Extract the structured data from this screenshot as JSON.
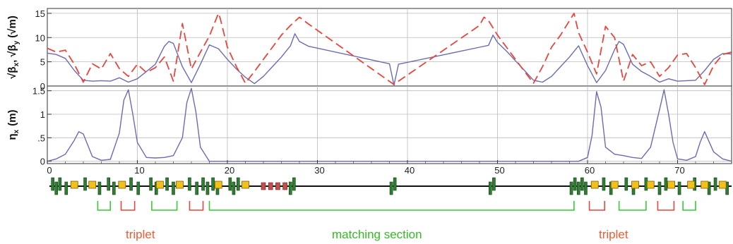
{
  "chart_data": [
    {
      "type": "line",
      "ylabel": "√β_x, √β_y (√m)",
      "ylabel_parts": {
        "beta": "β",
        "sub_x": "x",
        "sub_y": "y",
        "sep": ",",
        "unit": "(√m)",
        "root": "√"
      },
      "xlim": [
        0,
        76
      ],
      "ylim": [
        0,
        16
      ],
      "yticks": [
        {
          "value": 0,
          "label": "0"
        },
        {
          "value": 5,
          "label": "5"
        },
        {
          "value": 10,
          "label": "10"
        },
        {
          "value": 15,
          "label": "15"
        }
      ],
      "grid": true,
      "series": [
        {
          "color": "#6b6bb3",
          "style": "solid",
          "x": [
            0,
            1,
            2,
            3,
            4,
            5,
            6,
            7,
            8,
            9,
            10,
            11,
            12,
            13,
            13.5,
            14,
            15,
            16,
            17,
            18,
            19,
            20,
            21,
            22,
            23,
            24,
            25,
            26,
            27,
            27.5,
            28,
            29,
            38,
            38.5,
            39,
            48,
            49,
            49.5,
            50,
            51,
            52,
            53,
            54,
            55,
            56,
            57,
            58,
            59,
            60,
            61,
            62,
            63,
            63.5,
            64,
            65,
            66,
            67,
            68,
            69,
            70,
            71,
            72,
            73,
            74,
            75,
            76
          ],
          "y": [
            6.8,
            6.5,
            5.7,
            3.2,
            1.2,
            1.0,
            1.1,
            1.0,
            1.7,
            0.8,
            1.5,
            3.0,
            4.5,
            8.2,
            9.2,
            8.8,
            4.0,
            0.7,
            4.5,
            8.5,
            7.7,
            5.5,
            3.5,
            1.8,
            0.5,
            2.0,
            4.0,
            6.0,
            8.3,
            10.8,
            9.2,
            8.2,
            4.6,
            0.2,
            4.5,
            8.0,
            8.4,
            10.5,
            9.0,
            7.2,
            5.2,
            3.2,
            1.2,
            0.8,
            2.0,
            4.0,
            6.0,
            8.3,
            4.2,
            0.7,
            3.2,
            7.5,
            9.2,
            8.6,
            4.5,
            3.0,
            2.0,
            0.8,
            1.5,
            1.0,
            1.1,
            1.2,
            3.2,
            5.5,
            6.7,
            6.6
          ]
        },
        {
          "color": "#e8453c",
          "style": "dashed",
          "x": [
            0,
            1,
            2,
            3,
            4,
            5,
            6,
            7,
            8,
            9,
            10,
            11,
            12,
            13,
            14,
            15,
            16,
            17,
            18,
            19,
            19.2,
            20,
            21,
            22,
            23,
            24,
            25,
            26,
            27,
            28,
            29,
            38.5,
            39,
            48,
            48.5,
            49,
            50,
            51,
            52,
            53,
            54,
            55,
            56,
            57,
            58,
            58.5,
            59,
            60,
            61,
            62,
            63,
            64,
            65,
            66,
            67,
            68,
            69,
            70,
            71,
            72,
            73,
            74,
            75,
            76
          ],
          "y": [
            7.8,
            7.0,
            7.4,
            4.5,
            0.8,
            4.6,
            3.5,
            6.7,
            3.6,
            2.0,
            4.5,
            2.8,
            3.8,
            6.0,
            1.0,
            12.9,
            3.5,
            7.0,
            10.3,
            15.0,
            14.0,
            8.0,
            4.0,
            0.6,
            3.0,
            5.5,
            8.0,
            10.5,
            12.5,
            14.2,
            12.8,
            0.3,
            1.0,
            12.5,
            14.2,
            13.5,
            10.5,
            8.0,
            5.5,
            3.0,
            0.6,
            4.0,
            8.0,
            10.5,
            13.5,
            15.0,
            11.0,
            7.0,
            2.5,
            12.3,
            10.0,
            1.0,
            6.5,
            4.2,
            5.0,
            2.0,
            3.8,
            6.4,
            6.7,
            3.8,
            0.3,
            4.2,
            6.5,
            7.0
          ]
        }
      ]
    },
    {
      "type": "line",
      "ylabel": "η_x (m)",
      "ylabel_parts": {
        "eta": "η",
        "sub": "x",
        "unit": "(m)"
      },
      "xlim": [
        0,
        76
      ],
      "ylim": [
        -0.05,
        1.6
      ],
      "yticks": [
        {
          "value": 0,
          "label": "0"
        },
        {
          "value": 0.5,
          "label": ".5"
        },
        {
          "value": 1,
          "label": "1"
        },
        {
          "value": 1.5,
          "label": "1.5"
        }
      ],
      "xticks": [
        {
          "value": 0,
          "label": "0"
        },
        {
          "value": 10,
          "label": "10"
        },
        {
          "value": 20,
          "label": "20"
        },
        {
          "value": 30,
          "label": "30"
        },
        {
          "value": 40,
          "label": "40"
        },
        {
          "value": 50,
          "label": "50"
        },
        {
          "value": 60,
          "label": "60"
        },
        {
          "value": 70,
          "label": "70"
        }
      ],
      "grid": true,
      "series": [
        {
          "color": "#6b6bb3",
          "style": "solid",
          "x": [
            0,
            1,
            2,
            3,
            3.5,
            4,
            5,
            6,
            7,
            8,
            8.5,
            9,
            9.5,
            10,
            11,
            12,
            13,
            14,
            15,
            15.5,
            16,
            16.5,
            17,
            18,
            59,
            60,
            60.5,
            61,
            61.5,
            62,
            63,
            64,
            65,
            66,
            67,
            68,
            68.5,
            69,
            69.5,
            70,
            71,
            72,
            72.5,
            73,
            74,
            75,
            76
          ],
          "y": [
            0,
            0.05,
            0.15,
            0.45,
            0.63,
            0.58,
            0.1,
            0.02,
            0.04,
            0.6,
            1.3,
            1.52,
            1.0,
            0.4,
            0.08,
            0.07,
            0.08,
            0.12,
            0.5,
            1.25,
            1.55,
            1.05,
            0.3,
            0,
            0,
            0.08,
            0.55,
            1.48,
            1.15,
            0.3,
            0.15,
            0.12,
            0.08,
            0.06,
            0.3,
            1.1,
            1.52,
            1.0,
            0.4,
            0.05,
            0.02,
            0.1,
            0.4,
            0.63,
            0.2,
            0.05,
            0
          ]
        }
      ]
    }
  ],
  "lattice": {
    "x_start": 0,
    "x_end": 76,
    "dipole_color": "#f2c21a",
    "quad_color": "#2e7d32",
    "orange_color": "#c0504d",
    "dipoles": [
      3.0,
      5.0,
      8.3,
      12.5,
      14.7,
      19.0,
      22.0,
      60.8,
      63.0,
      65.3,
      67.0,
      69.3,
      71.5,
      73.0,
      75.0
    ],
    "quads": [
      0.6,
      1.0,
      1.4,
      2.1,
      4.2,
      5.8,
      6.8,
      7.4,
      9.3,
      10.1,
      11.5,
      12.1,
      13.3,
      14.0,
      15.8,
      16.6,
      17.3,
      17.8,
      18.4,
      18.9,
      20.3,
      20.7,
      21.2,
      27.0,
      27.4,
      38.2,
      38.6,
      49.2,
      49.6,
      58.2,
      58.6,
      59.0,
      59.4,
      59.8,
      61.8,
      62.6,
      64.3,
      65.1,
      66.5,
      68.0,
      68.7,
      70.2,
      71.9,
      73.5,
      74.2,
      75.5
    ],
    "orange": [
      24.0,
      24.8,
      25.6,
      26.4
    ],
    "brackets": [
      {
        "from": 8.2,
        "to": 9.7,
        "color": "#e8453c"
      },
      {
        "from": 15.8,
        "to": 17.3,
        "color": "#e8453c"
      },
      {
        "from": 60.2,
        "to": 61.9,
        "color": "#e8453c"
      },
      {
        "from": 67.8,
        "to": 69.6,
        "color": "#e8453c"
      },
      {
        "from": 5.6,
        "to": 7.0,
        "color": "#33cc33"
      },
      {
        "from": 11.6,
        "to": 14.4,
        "color": "#33cc33"
      },
      {
        "from": 18.0,
        "to": 58.5,
        "color": "#33cc33"
      },
      {
        "from": 63.5,
        "to": 66.5,
        "color": "#33cc33"
      },
      {
        "from": 70.6,
        "to": 72.0,
        "color": "#33cc33"
      }
    ]
  },
  "annotations": [
    {
      "text": "triplet",
      "color": "#f25b33"
    },
    {
      "text": "matching section",
      "color": "#33bb22"
    },
    {
      "text": "triplet",
      "color": "#f25b33"
    }
  ]
}
